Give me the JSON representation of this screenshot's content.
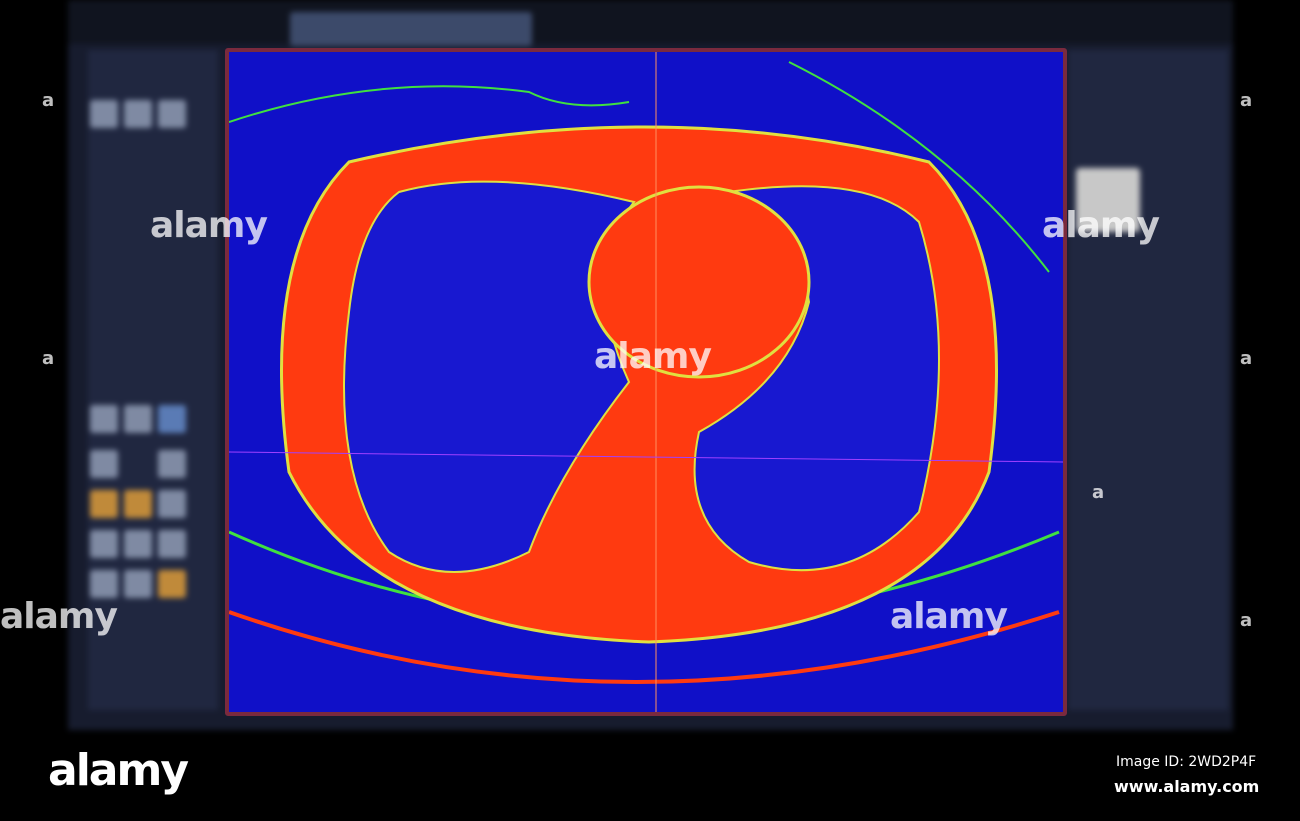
{
  "watermark": {
    "text": "alamy",
    "small": "a"
  },
  "footer": {
    "logo": "alamy",
    "image_id": "Image ID: 2WD2P4F",
    "site": "www.alamy.com"
  },
  "colors": {
    "background": "#000000",
    "app": "#171c2e",
    "scan_blue": "#1010c8",
    "scan_red": "#ff3a10",
    "scan_green": "#40e040",
    "viewport_border": "#7a2a3e"
  }
}
